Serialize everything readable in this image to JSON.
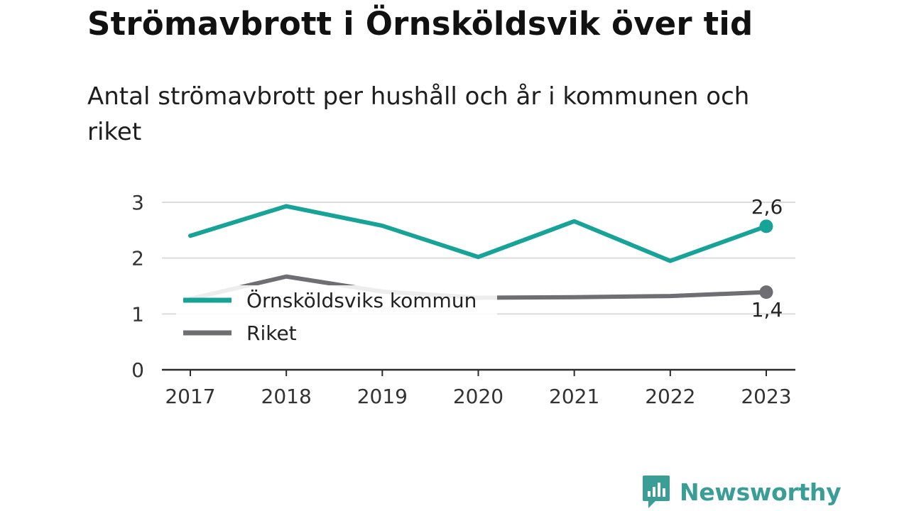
{
  "chart_data": {
    "type": "line",
    "title": "Strömavbrott i Örnsköldsvik över tid",
    "subtitle": "Antal strömavbrott per hushåll och år i kommunen och riket",
    "categories": [
      "2017",
      "2018",
      "2019",
      "2020",
      "2021",
      "2022",
      "2023"
    ],
    "series": [
      {
        "name": "Örnsköldsviks kommun",
        "color": "#17a398",
        "values": [
          2.4,
          2.93,
          2.58,
          2.02,
          2.66,
          1.95,
          2.57
        ],
        "end_label": "2,6"
      },
      {
        "name": "Riket",
        "color": "#6e6e73",
        "values": [
          1.27,
          1.67,
          1.4,
          1.29,
          1.3,
          1.32,
          1.39
        ],
        "end_label": "1,4"
      }
    ],
    "yticks": [
      "0",
      "1",
      "2",
      "3"
    ],
    "ylim": [
      0,
      3
    ],
    "grid": true,
    "legend_position": "left-middle"
  },
  "brand": {
    "name": "Newsworthy",
    "icon": "newsworthy-logo-icon",
    "color": "#3a9d96"
  }
}
